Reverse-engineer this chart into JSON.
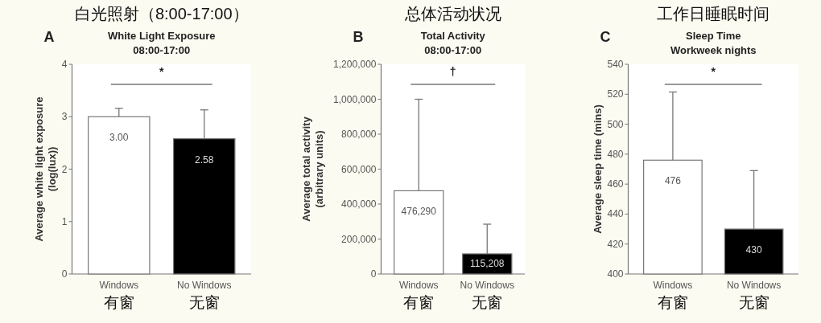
{
  "chart_data": [
    {
      "type": "bar",
      "title": "白光照射（8:00-17:00）",
      "subtitle": "White Light Exposure\n08:00-17:00",
      "ylabel": "Average white light exposure\n(log(lux))",
      "annotations": [
        "A",
        "*"
      ],
      "categories": [
        "Windows\n有窗",
        "No Windows\n无窗"
      ],
      "values": [
        3.0,
        2.58
      ],
      "colors": [
        "#ffffff",
        "#000000"
      ],
      "errors": [
        [
          3.0,
          3.16
        ],
        [
          2.58,
          3.13
        ]
      ],
      "value_labels": [
        "3.00",
        "2.58"
      ],
      "ylim": [
        0,
        4
      ],
      "yticks": [
        0,
        1,
        2,
        3,
        4
      ]
    },
    {
      "type": "bar",
      "title": "总体活动状况",
      "subtitle": "Total Activity\n08:00-17:00",
      "ylabel": "Average total activity\n(arbitrary units)",
      "annotations": [
        "B",
        "†"
      ],
      "categories": [
        "Windows\n有窗",
        "No Windows\n无窗"
      ],
      "values": [
        476290,
        115208
      ],
      "colors": [
        "#ffffff",
        "#000000"
      ],
      "errors": [
        [
          476290,
          1000000
        ],
        [
          115208,
          285000
        ]
      ],
      "value_labels": [
        "476,290",
        "115,208"
      ],
      "ylim": [
        0,
        1200000
      ],
      "yticks": [
        {
          "value": 0,
          "label": "0"
        },
        {
          "value": 200000,
          "label": "200,000"
        },
        {
          "value": 400000,
          "label": "400,000"
        },
        {
          "value": 600000,
          "label": "600,000"
        },
        {
          "value": 800000,
          "label": "800,000"
        },
        {
          "value": 1000000,
          "label": "1,000,000"
        },
        {
          "value": 1200000,
          "label": "1,200,000"
        }
      ]
    },
    {
      "type": "bar",
      "title": "工作日睡眠时间",
      "subtitle": "Sleep Time\nWorkweek nights",
      "ylabel": "Average sleep time (mins)",
      "annotations": [
        "C",
        "*"
      ],
      "categories": [
        "Windows\n有窗",
        "No Windows\n无窗"
      ],
      "values": [
        476,
        430
      ],
      "colors": [
        "#ffffff",
        "#000000"
      ],
      "errors": [
        [
          476,
          521.5
        ],
        [
          430,
          469
        ]
      ],
      "value_labels": [
        "476",
        "430"
      ],
      "ylim": [
        400,
        540
      ],
      "yticks": [
        400,
        420,
        440,
        460,
        480,
        500,
        520,
        540
      ]
    }
  ]
}
